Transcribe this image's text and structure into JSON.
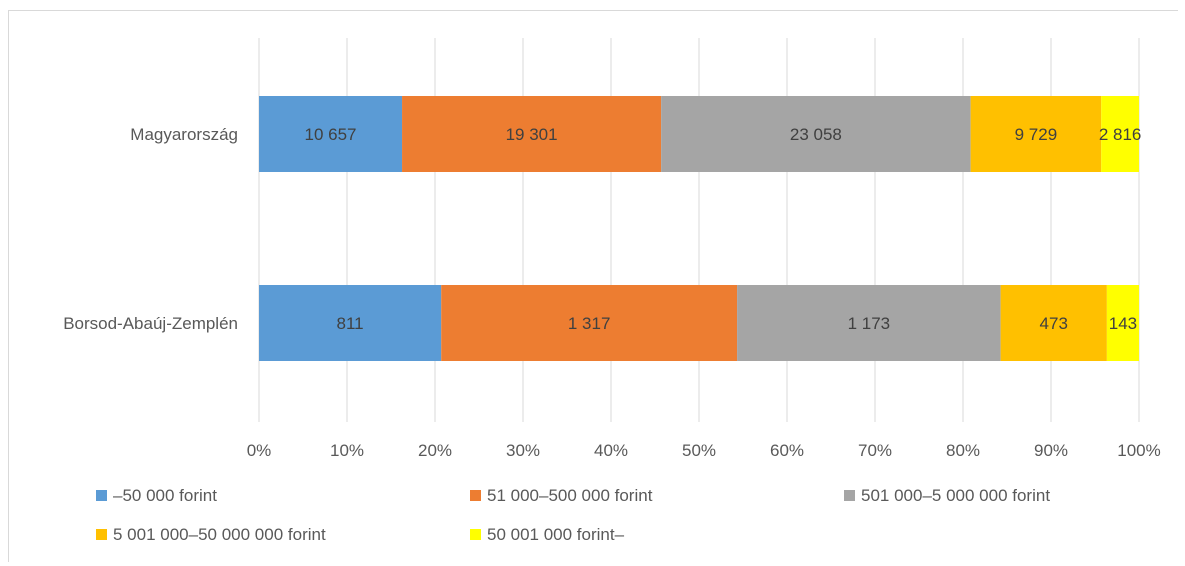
{
  "chart_data": {
    "type": "bar",
    "orientation": "horizontal",
    "stacked": "percent",
    "categories": [
      "Magyarország",
      "Borsod-Abaúj-Zemplén"
    ],
    "series": [
      {
        "name": "–50 000 forint",
        "color": "#5b9bd5",
        "values": [
          10657,
          811
        ],
        "labels": [
          "10 657",
          "811"
        ]
      },
      {
        "name": "51 000–500 000 forint",
        "color": "#ed7d31",
        "values": [
          19301,
          1317
        ],
        "labels": [
          "19 301",
          "1 317"
        ]
      },
      {
        "name": "501 000–5 000 000 forint",
        "color": "#a5a5a5",
        "values": [
          23058,
          1173
        ],
        "labels": [
          "23 058",
          "1 173"
        ]
      },
      {
        "name": "5 001 000–50 000 000 forint",
        "color": "#ffc000",
        "values": [
          9729,
          473
        ],
        "labels": [
          "9 729",
          "473"
        ]
      },
      {
        "name": "50 001 000 forint–",
        "color": "#ffff00",
        "values": [
          2816,
          143
        ],
        "labels": [
          "2 816",
          "143"
        ]
      }
    ],
    "xticks": [
      "0%",
      "10%",
      "20%",
      "30%",
      "40%",
      "50%",
      "60%",
      "70%",
      "80%",
      "90%",
      "100%"
    ],
    "xlim": [
      0,
      100
    ],
    "grid": "vertical",
    "legend": "bottom"
  }
}
